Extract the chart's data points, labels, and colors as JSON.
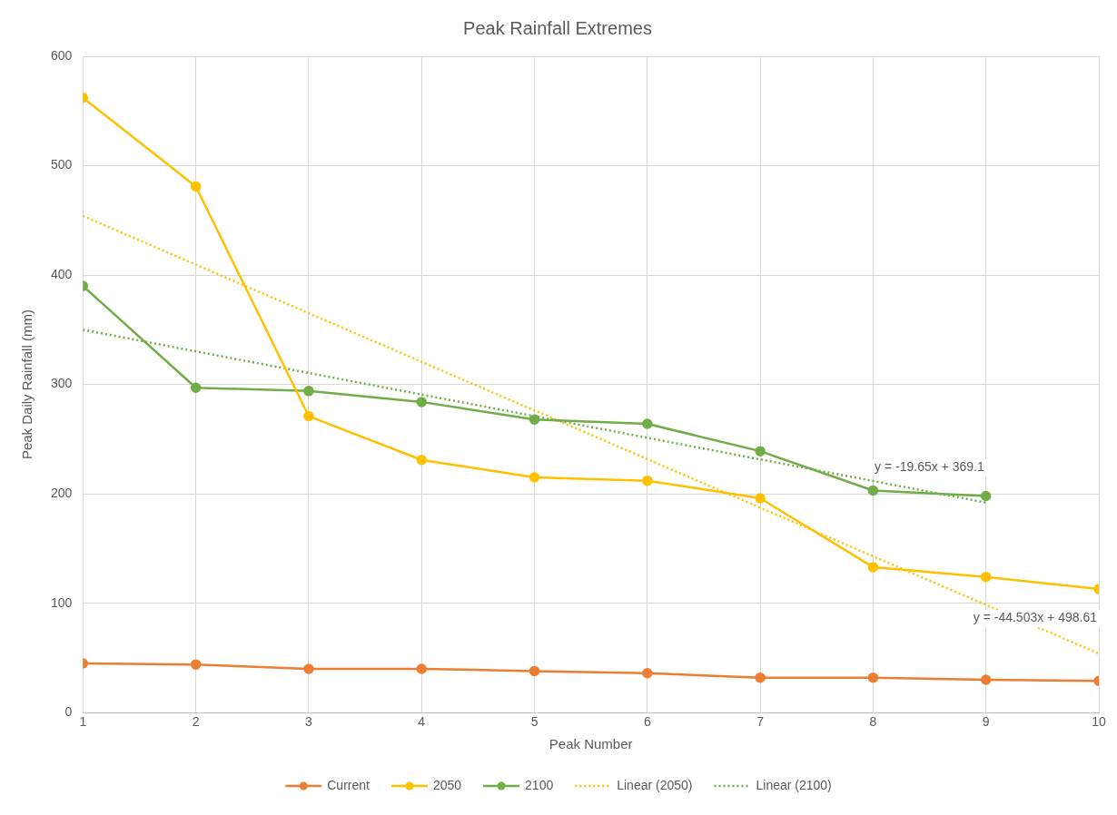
{
  "chart_data": {
    "type": "line",
    "title": "Peak Rainfall Extremes",
    "xlabel": "Peak Number",
    "ylabel": "Peak Daily Rainfall (mm)",
    "x": [
      1,
      2,
      3,
      4,
      5,
      6,
      7,
      8,
      9,
      10
    ],
    "series": [
      {
        "name": "Current",
        "color": "#ed7d31",
        "values": [
          45,
          44,
          40,
          40,
          38,
          36,
          32,
          32,
          30,
          29
        ]
      },
      {
        "name": "2050",
        "color": "#ffc000",
        "values": [
          562,
          481,
          271,
          231,
          215,
          212,
          196,
          133,
          124,
          113
        ]
      },
      {
        "name": "2100",
        "color": "#70ad47",
        "values": [
          390,
          297,
          294,
          284,
          268,
          264,
          239,
          203,
          198,
          null
        ]
      },
      {
        "name": "Linear (2050)",
        "type": "line",
        "color": "#ffc000",
        "x": [
          1,
          10
        ],
        "values": [
          454,
          54
        ],
        "marker": "none",
        "line_style": "dotted"
      },
      {
        "name": "Linear (2100)",
        "type": "line",
        "color": "#70ad47",
        "x": [
          1,
          9
        ],
        "values": [
          350,
          192
        ],
        "marker": "none",
        "line_style": "dotted"
      }
    ],
    "annotations": [
      {
        "text": "y = -19.65x + 369.1",
        "x": 9,
        "y": 192
      },
      {
        "text": "y = -44.503x + 498.61",
        "x": 10,
        "y": 54
      }
    ],
    "xlim": [
      1,
      10
    ],
    "xticks": [
      1,
      2,
      3,
      4,
      5,
      6,
      7,
      8,
      9,
      10
    ],
    "ylim": [
      0,
      600
    ],
    "yticks": [
      0,
      100,
      200,
      300,
      400,
      500,
      600
    ],
    "grid": true,
    "legend": "bottom",
    "marker": "circle",
    "line_style": "solid"
  }
}
